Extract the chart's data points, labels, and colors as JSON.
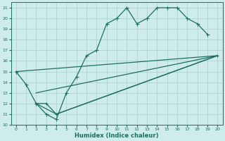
{
  "xlabel": "Humidex (Indice chaleur)",
  "bg_color": "#cdecea",
  "grid_color": "#aed4d0",
  "line_color": "#1e6e62",
  "xlim": [
    -0.5,
    20.5
  ],
  "ylim": [
    10,
    21.5
  ],
  "xticks": [
    0,
    1,
    2,
    3,
    4,
    5,
    6,
    7,
    8,
    9,
    10,
    11,
    12,
    13,
    14,
    15,
    16,
    17,
    18,
    19,
    20
  ],
  "yticks": [
    10,
    11,
    12,
    13,
    14,
    15,
    16,
    17,
    18,
    19,
    20,
    21
  ],
  "line1_x": [
    0,
    1,
    2,
    3,
    4,
    5,
    6,
    7,
    8,
    9,
    10,
    11,
    12,
    13,
    14,
    15,
    16,
    17,
    18,
    19
  ],
  "line1_y": [
    15,
    13.8,
    12,
    11,
    10.5,
    13,
    14.5,
    16.5,
    17,
    19.5,
    20,
    21,
    19.5,
    20,
    21,
    21,
    21,
    20,
    19.5,
    18.5
  ],
  "line2_x": [
    2,
    3,
    4,
    20
  ],
  "line2_y": [
    12,
    12,
    11,
    16.5
  ],
  "line3_x": [
    2,
    4,
    20
  ],
  "line3_y": [
    12,
    11,
    16.5
  ],
  "line4_x": [
    0,
    20
  ],
  "line4_y": [
    15,
    16.5
  ],
  "line5_x": [
    2,
    20
  ],
  "line5_y": [
    13,
    16.5
  ]
}
